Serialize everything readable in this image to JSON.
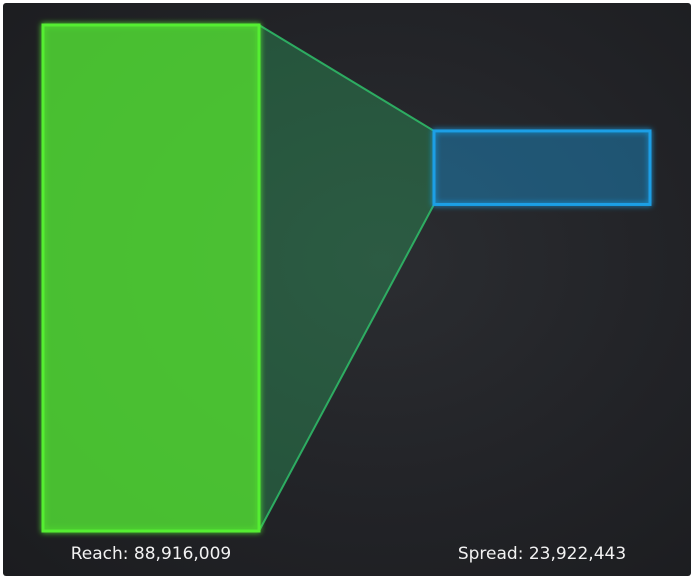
{
  "chart_data": {
    "type": "funnel",
    "stages": [
      {
        "label": "Reach: 88,916,009",
        "name": "Reach",
        "value": 88916009,
        "color": "#55ee33"
      },
      {
        "label": "Spread: 23,922,443",
        "name": "Spread",
        "value": 23922443,
        "color": "#1a9fe6"
      }
    ],
    "connector_color": "#2fbf6a",
    "legend": "none",
    "grid": false
  }
}
